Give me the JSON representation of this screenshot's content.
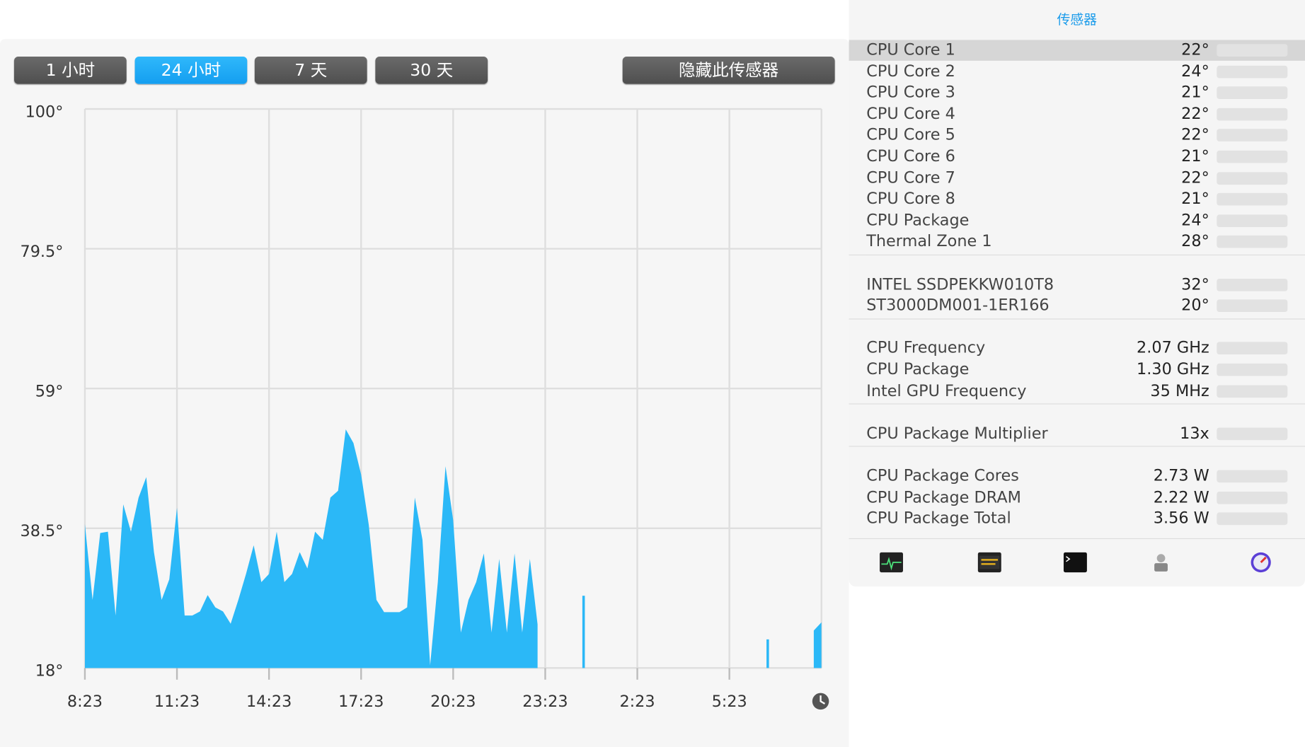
{
  "buttons": [
    "1 小时",
    "24 小时",
    "7 天",
    "30 天"
  ],
  "active_button": 1,
  "hide_button": "隐藏此传感器",
  "sidebar": {
    "title": "传感器",
    "groups": [
      [
        {
          "name": "CPU Core 1",
          "value": "22°"
        },
        {
          "name": "CPU Core 2",
          "value": "24°"
        },
        {
          "name": "CPU Core 3",
          "value": "21°"
        },
        {
          "name": "CPU Core 4",
          "value": "22°"
        },
        {
          "name": "CPU Core 5",
          "value": "22°"
        },
        {
          "name": "CPU Core 6",
          "value": "21°"
        },
        {
          "name": "CPU Core 7",
          "value": "22°"
        },
        {
          "name": "CPU Core 8",
          "value": "21°"
        },
        {
          "name": "CPU Package",
          "value": "24°"
        },
        {
          "name": "Thermal Zone 1",
          "value": "28°"
        }
      ],
      [
        {
          "name": "INTEL SSDPEKKW010T8",
          "value": "32°"
        },
        {
          "name": "ST3000DM001-1ER166",
          "value": "20°"
        }
      ],
      [
        {
          "name": "CPU Frequency",
          "value": "2.07 GHz"
        },
        {
          "name": "CPU Package",
          "value": "1.30 GHz"
        },
        {
          "name": "Intel GPU Frequency",
          "value": "35 MHz"
        }
      ],
      [
        {
          "name": "CPU Package Multiplier",
          "value": "13x"
        }
      ],
      [
        {
          "name": "CPU Package Cores",
          "value": "2.73 W"
        },
        {
          "name": "CPU Package DRAM",
          "value": "2.22 W"
        },
        {
          "name": "CPU Package Total",
          "value": "3.56 W"
        }
      ]
    ]
  },
  "chart_data": {
    "type": "area",
    "color": "#2bb8f7",
    "grid": true,
    "ylim": [
      18,
      100
    ],
    "yticks": [
      {
        "value": 18,
        "label": "18°"
      },
      {
        "value": 38.5,
        "label": "38.5°"
      },
      {
        "value": 59,
        "label": "59°"
      },
      {
        "value": 79.5,
        "label": "79.5°"
      },
      {
        "value": 100,
        "label": "100°"
      }
    ],
    "categories": [
      "8:23",
      null,
      null,
      null,
      null,
      null,
      null,
      null,
      null,
      null,
      null,
      null,
      "11:23",
      null,
      null,
      null,
      null,
      null,
      null,
      null,
      null,
      null,
      null,
      null,
      "14:23",
      null,
      null,
      null,
      null,
      null,
      null,
      null,
      null,
      null,
      null,
      null,
      "17:23",
      null,
      null,
      null,
      null,
      null,
      null,
      null,
      null,
      null,
      null,
      null,
      "20:23",
      null,
      null,
      null,
      null,
      null,
      null,
      null,
      null,
      null,
      null,
      null,
      "23:23",
      null,
      null,
      null,
      null,
      null,
      null,
      null,
      null,
      null,
      null,
      null,
      "2:23",
      null,
      null,
      null,
      null,
      null,
      null,
      null,
      null,
      null,
      null,
      null,
      "5:23",
      null,
      null,
      null,
      null,
      null,
      null,
      null,
      null,
      null,
      null,
      null,
      null
    ],
    "values": [
      39.1,
      28,
      37.8,
      38,
      25.7,
      42,
      38,
      43,
      46,
      35,
      28,
      31,
      41.5,
      25.7,
      25.7,
      26.3,
      28.7,
      26.9,
      26.3,
      24.5,
      28,
      31.8,
      36,
      30.6,
      31.8,
      38,
      30.6,
      31.8,
      35,
      32.6,
      38,
      36.8,
      43,
      44,
      53,
      51,
      46.4,
      39,
      28,
      26.2,
      26.2,
      26.2,
      26.9,
      43,
      36.8,
      18.4,
      30.6,
      47.6,
      39.7,
      23.2,
      28,
      30.6,
      34.8,
      23.2,
      34,
      23.2,
      34.8,
      23.2,
      34,
      24.4,
      null,
      null,
      null,
      null,
      null,
      28.6,
      null,
      null,
      null,
      null,
      null,
      null,
      null,
      null,
      null,
      null,
      null,
      null,
      null,
      null,
      null,
      null,
      null,
      null,
      null,
      null,
      null,
      null,
      null,
      22.2,
      null,
      null,
      null,
      null,
      null,
      23.5,
      24.7
    ]
  }
}
